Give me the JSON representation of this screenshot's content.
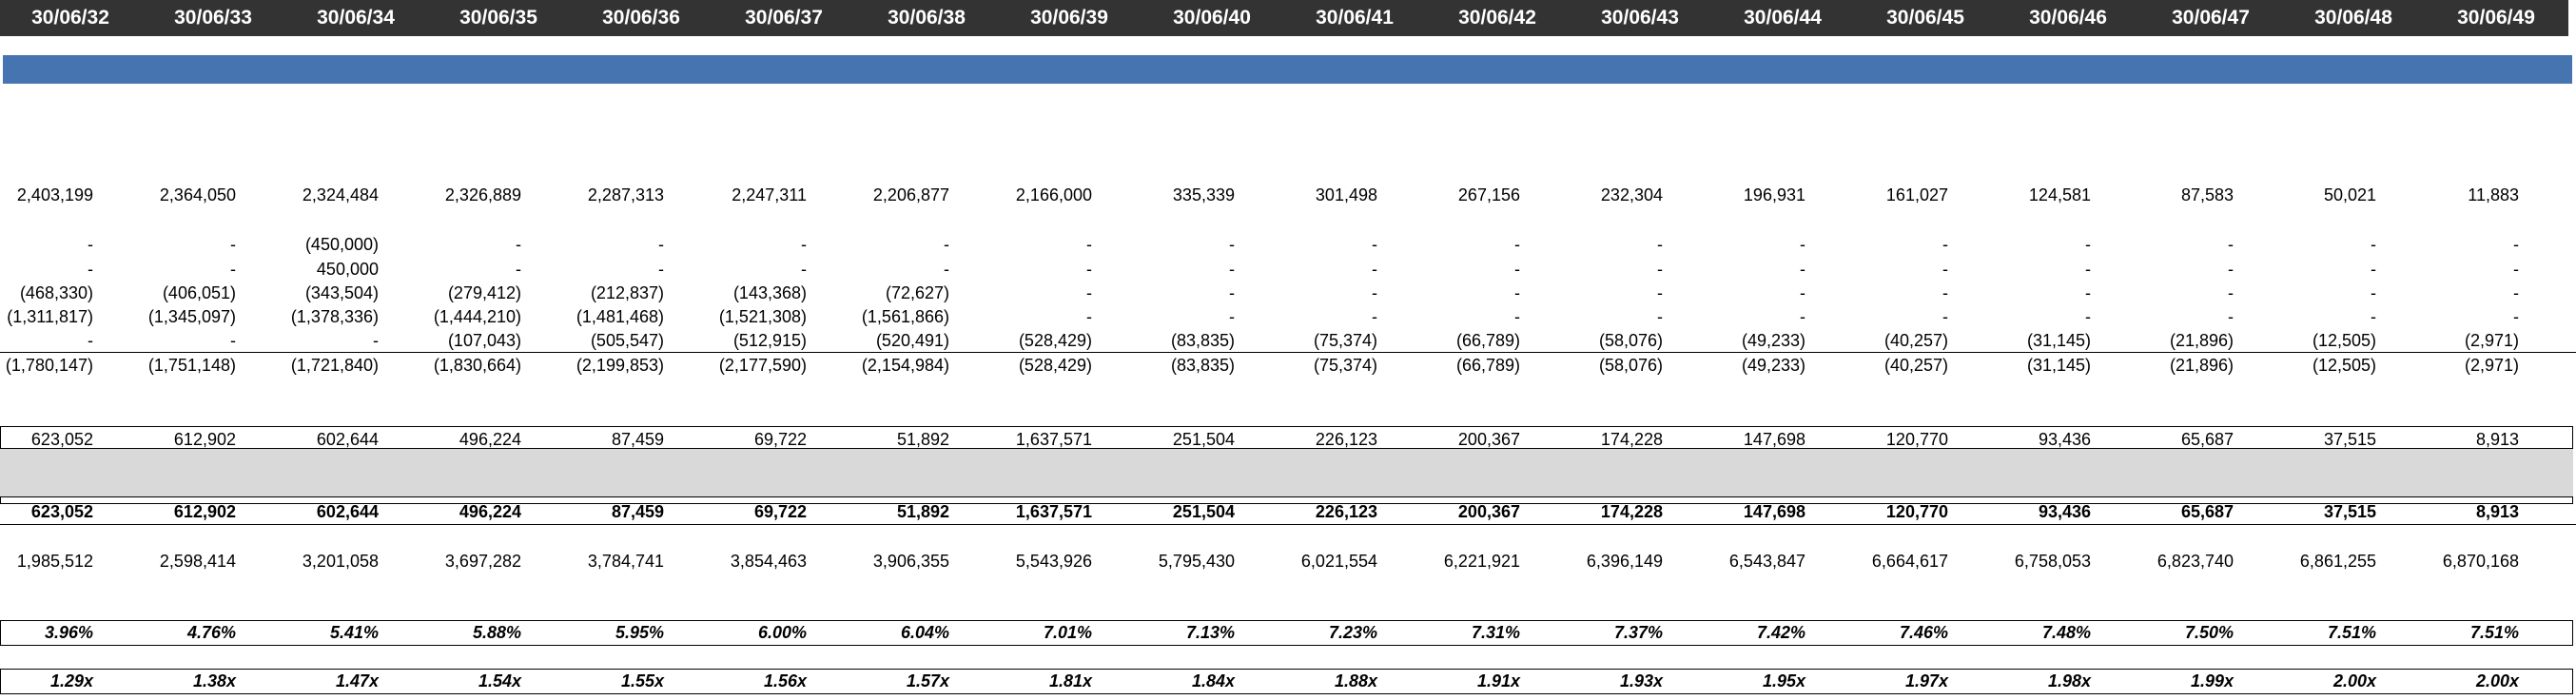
{
  "columns": [
    "30/06/32",
    "30/06/33",
    "30/06/34",
    "30/06/35",
    "30/06/36",
    "30/06/37",
    "30/06/38",
    "30/06/39",
    "30/06/40",
    "30/06/41",
    "30/06/42",
    "30/06/43",
    "30/06/44",
    "30/06/45",
    "30/06/46",
    "30/06/47",
    "30/06/48",
    "30/06/49"
  ],
  "colors": {
    "header_bg": "#333333",
    "header_text": "#ffffff",
    "blue_band": "#4674b1",
    "grey_band": "#d9d9d9"
  },
  "rows": [
    {
      "id": "opening-balance",
      "values": [
        "2,403,199",
        "2,364,050",
        "2,324,484",
        "2,326,889",
        "2,287,313",
        "2,247,311",
        "2,206,877",
        "2,166,000",
        "335,339",
        "301,498",
        "267,156",
        "232,304",
        "196,931",
        "161,027",
        "124,581",
        "87,583",
        "50,021",
        "11,883"
      ]
    },
    {
      "id": "adjust-1",
      "values": [
        "-",
        "-",
        "(450,000)",
        "-",
        "-",
        "-",
        "-",
        "-",
        "-",
        "-",
        "-",
        "-",
        "-",
        "-",
        "-",
        "-",
        "-",
        "-"
      ]
    },
    {
      "id": "adjust-2",
      "values": [
        "-",
        "-",
        "450,000",
        "-",
        "-",
        "-",
        "-",
        "-",
        "-",
        "-",
        "-",
        "-",
        "-",
        "-",
        "-",
        "-",
        "-",
        "-"
      ]
    },
    {
      "id": "adjust-3",
      "values": [
        "(468,330)",
        "(406,051)",
        "(343,504)",
        "(279,412)",
        "(212,837)",
        "(143,368)",
        "(72,627)",
        "-",
        "-",
        "-",
        "-",
        "-",
        "-",
        "-",
        "-",
        "-",
        "-",
        "-"
      ]
    },
    {
      "id": "adjust-4",
      "values": [
        "(1,311,817)",
        "(1,345,097)",
        "(1,378,336)",
        "(1,444,210)",
        "(1,481,468)",
        "(1,521,308)",
        "(1,561,866)",
        "-",
        "-",
        "-",
        "-",
        "-",
        "-",
        "-",
        "-",
        "-",
        "-",
        "-"
      ]
    },
    {
      "id": "adjust-5",
      "values": [
        "-",
        "-",
        "-",
        "(107,043)",
        "(505,547)",
        "(512,915)",
        "(520,491)",
        "(528,429)",
        "(83,835)",
        "(75,374)",
        "(66,789)",
        "(58,076)",
        "(49,233)",
        "(40,257)",
        "(31,145)",
        "(21,896)",
        "(12,505)",
        "(2,971)"
      ]
    },
    {
      "id": "adjust-total",
      "values": [
        "(1,780,147)",
        "(1,751,148)",
        "(1,721,840)",
        "(1,830,664)",
        "(2,199,853)",
        "(2,177,590)",
        "(2,154,984)",
        "(528,429)",
        "(83,835)",
        "(75,374)",
        "(66,789)",
        "(58,076)",
        "(49,233)",
        "(40,257)",
        "(31,145)",
        "(21,896)",
        "(12,505)",
        "(2,971)"
      ]
    },
    {
      "id": "subtotal",
      "values": [
        "623,052",
        "612,902",
        "602,644",
        "496,224",
        "87,459",
        "69,722",
        "51,892",
        "1,637,571",
        "251,504",
        "226,123",
        "200,367",
        "174,228",
        "147,698",
        "120,770",
        "93,436",
        "65,687",
        "37,515",
        "8,913"
      ]
    },
    {
      "id": "total",
      "values": [
        "623,052",
        "612,902",
        "602,644",
        "496,224",
        "87,459",
        "69,722",
        "51,892",
        "1,637,571",
        "251,504",
        "226,123",
        "200,367",
        "174,228",
        "147,698",
        "120,770",
        "93,436",
        "65,687",
        "37,515",
        "8,913"
      ]
    },
    {
      "id": "cumulative",
      "values": [
        "1,985,512",
        "2,598,414",
        "3,201,058",
        "3,697,282",
        "3,784,741",
        "3,854,463",
        "3,906,355",
        "5,543,926",
        "5,795,430",
        "6,021,554",
        "6,221,921",
        "6,396,149",
        "6,543,847",
        "6,664,617",
        "6,758,053",
        "6,823,740",
        "6,861,255",
        "6,870,168"
      ]
    },
    {
      "id": "percent",
      "values": [
        "3.96%",
        "4.76%",
        "5.41%",
        "5.88%",
        "5.95%",
        "6.00%",
        "6.04%",
        "7.01%",
        "7.13%",
        "7.23%",
        "7.31%",
        "7.37%",
        "7.42%",
        "7.46%",
        "7.48%",
        "7.50%",
        "7.51%",
        "7.51%"
      ]
    },
    {
      "id": "multiple",
      "values": [
        "1.29x",
        "1.38x",
        "1.47x",
        "1.54x",
        "1.55x",
        "1.56x",
        "1.57x",
        "1.81x",
        "1.84x",
        "1.88x",
        "1.91x",
        "1.93x",
        "1.95x",
        "1.97x",
        "1.98x",
        "1.99x",
        "2.00x",
        "2.00x"
      ]
    }
  ]
}
